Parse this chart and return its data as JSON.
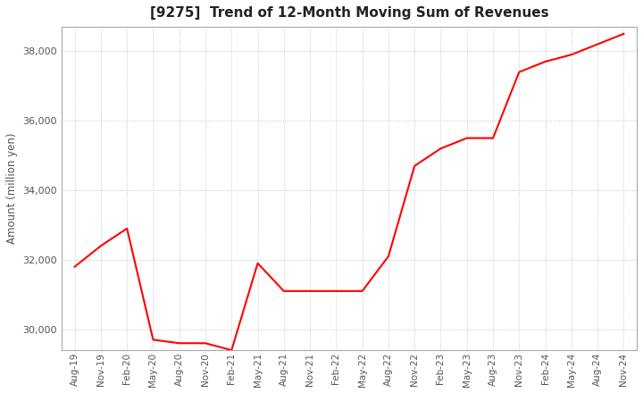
{
  "title": "[9275]  Trend of 12-Month Moving Sum of Revenues",
  "ylabel": "Amount (million yen)",
  "line_color": "#ff0000",
  "background_color": "#ffffff",
  "grid_color": "#aaaaaa",
  "ylim": [
    29400,
    38700
  ],
  "yticks": [
    30000,
    32000,
    34000,
    36000,
    38000
  ],
  "x_labels": [
    "Aug-19",
    "Nov-19",
    "Feb-20",
    "May-20",
    "Aug-20",
    "Nov-20",
    "Feb-21",
    "May-21",
    "Aug-21",
    "Nov-21",
    "Feb-22",
    "May-22",
    "Aug-22",
    "Nov-22",
    "Feb-23",
    "May-23",
    "Aug-23",
    "Nov-23",
    "Feb-24",
    "May-24",
    "Aug-24",
    "Nov-24"
  ],
  "values": [
    31800,
    32400,
    32900,
    29700,
    29600,
    29600,
    29400,
    31900,
    31100,
    31100,
    31100,
    31100,
    32100,
    34700,
    35200,
    35500,
    35500,
    37400,
    37700,
    37900,
    38200,
    38500
  ]
}
